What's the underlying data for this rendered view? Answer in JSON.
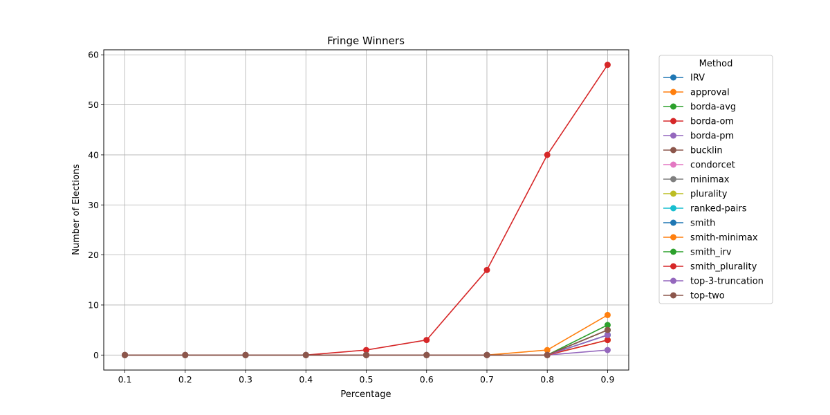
{
  "chart_data": {
    "type": "line",
    "title": "Fringe Winners",
    "xlabel": "Percentage",
    "ylabel": "Number of Elections",
    "x": [
      0.1,
      0.2,
      0.3,
      0.4,
      0.5,
      0.6,
      0.7,
      0.8,
      0.9
    ],
    "x_ticks": [
      "0.1",
      "0.2",
      "0.3",
      "0.4",
      "0.5",
      "0.6",
      "0.7",
      "0.8",
      "0.9"
    ],
    "xlim": [
      0.065,
      0.935
    ],
    "ylim": [
      -3,
      61
    ],
    "y_ticks": [
      0,
      10,
      20,
      30,
      40,
      50,
      60
    ],
    "grid": true,
    "legend": {
      "title": "Method",
      "position": "outside-right"
    },
    "series": [
      {
        "name": "IRV",
        "color": "#1f77b4",
        "values": [
          0,
          0,
          0,
          0,
          0,
          0,
          0,
          0,
          5
        ]
      },
      {
        "name": "approval",
        "color": "#ff7f0e",
        "values": [
          0,
          0,
          0,
          0,
          0,
          0,
          0,
          1,
          8
        ]
      },
      {
        "name": "borda-avg",
        "color": "#2ca02c",
        "values": [
          0,
          0,
          0,
          0,
          0,
          0,
          0,
          0,
          6
        ]
      },
      {
        "name": "borda-om",
        "color": "#d62728",
        "values": [
          0,
          0,
          0,
          0,
          1,
          3,
          17,
          40,
          58
        ]
      },
      {
        "name": "borda-pm",
        "color": "#9467bd",
        "values": [
          0,
          0,
          0,
          0,
          0,
          0,
          0,
          0,
          1
        ]
      },
      {
        "name": "bucklin",
        "color": "#8c564b",
        "values": [
          0,
          0,
          0,
          0,
          0,
          0,
          0,
          0,
          5
        ]
      },
      {
        "name": "condorcet",
        "color": "#e377c2",
        "values": [
          0,
          0,
          0,
          0,
          0,
          0,
          0,
          0,
          4
        ]
      },
      {
        "name": "minimax",
        "color": "#7f7f7f",
        "values": [
          0,
          0,
          0,
          0,
          0,
          0,
          0,
          0,
          4
        ]
      },
      {
        "name": "plurality",
        "color": "#bcbd22",
        "values": [
          0,
          0,
          0,
          0,
          0,
          0,
          0,
          0,
          3
        ]
      },
      {
        "name": "ranked-pairs",
        "color": "#17becf",
        "values": [
          0,
          0,
          0,
          0,
          0,
          0,
          0,
          0,
          4
        ]
      },
      {
        "name": "smith",
        "color": "#1f77b4",
        "values": [
          0,
          0,
          0,
          0,
          0,
          0,
          0,
          0,
          4
        ]
      },
      {
        "name": "smith-minimax",
        "color": "#ff7f0e",
        "values": [
          0,
          0,
          0,
          0,
          0,
          0,
          0,
          0,
          3
        ]
      },
      {
        "name": "smith_irv",
        "color": "#2ca02c",
        "values": [
          0,
          0,
          0,
          0,
          0,
          0,
          0,
          0,
          5
        ]
      },
      {
        "name": "smith_plurality",
        "color": "#d62728",
        "values": [
          0,
          0,
          0,
          0,
          0,
          0,
          0,
          0,
          3
        ]
      },
      {
        "name": "top-3-truncation",
        "color": "#9467bd",
        "values": [
          0,
          0,
          0,
          0,
          0,
          0,
          0,
          0,
          4
        ]
      },
      {
        "name": "top-two",
        "color": "#8c564b",
        "values": [
          0,
          0,
          0,
          0,
          0,
          0,
          0,
          0,
          5
        ]
      }
    ]
  }
}
